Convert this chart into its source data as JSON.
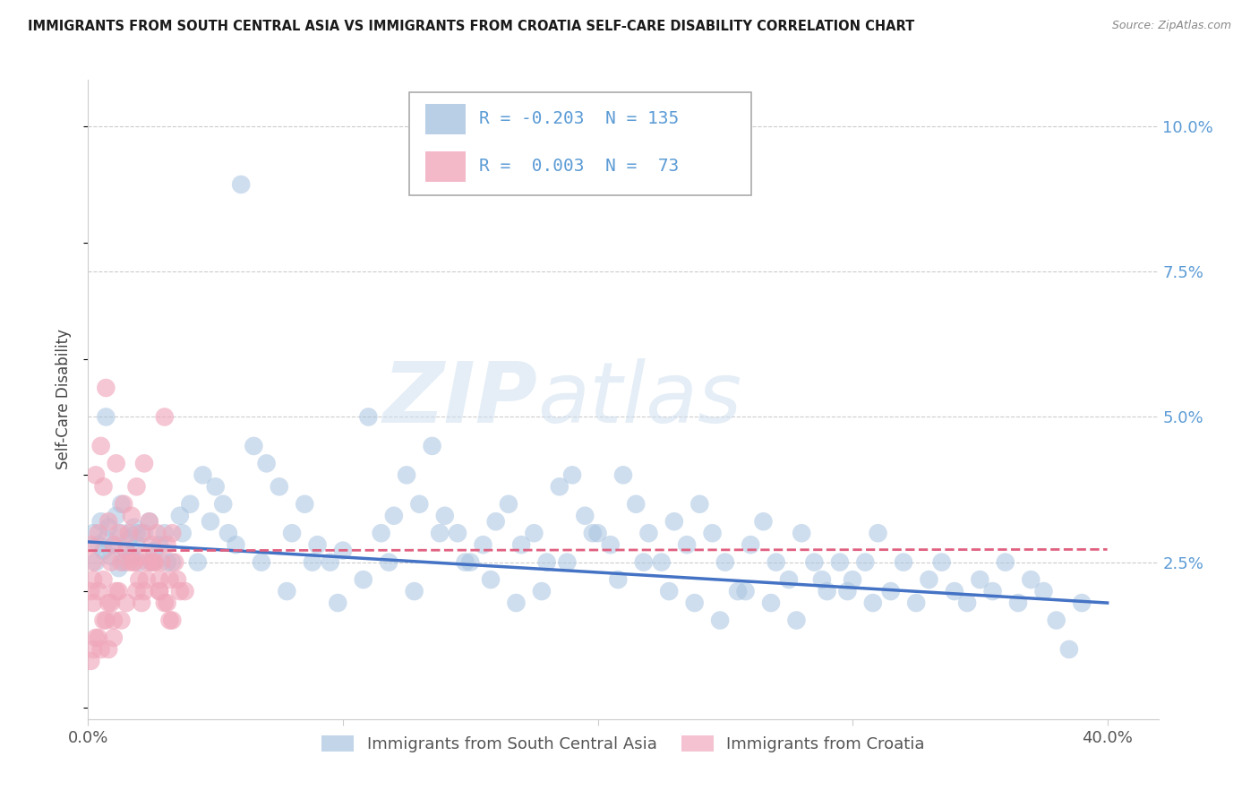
{
  "title": "IMMIGRANTS FROM SOUTH CENTRAL ASIA VS IMMIGRANTS FROM CROATIA SELF-CARE DISABILITY CORRELATION CHART",
  "source": "Source: ZipAtlas.com",
  "ylabel": "Self-Care Disability",
  "xlim": [
    0.0,
    0.42
  ],
  "ylim": [
    -0.002,
    0.108
  ],
  "legend_blue_r": "-0.203",
  "legend_blue_n": "135",
  "legend_pink_r": "0.003",
  "legend_pink_n": "73",
  "legend_label_blue": "Immigrants from South Central Asia",
  "legend_label_pink": "Immigrants from Croatia",
  "blue_color": "#a8c4e0",
  "pink_color": "#f0a8bc",
  "trendline_blue_color": "#4472c4",
  "trendline_pink_color": "#e06080",
  "blue_trendline": [
    0.0,
    0.0285,
    0.4,
    0.018
  ],
  "pink_trendline": [
    0.0,
    0.027,
    0.4,
    0.0272
  ],
  "ytick_gridlines": [
    0.025,
    0.05,
    0.075,
    0.1
  ],
  "xticks": [
    0.0,
    0.1,
    0.2,
    0.3,
    0.4
  ],
  "xticklabels": [
    "0.0%",
    "",
    "",
    "",
    "40.0%"
  ],
  "right_yticks": [
    0.025,
    0.05,
    0.075,
    0.1
  ],
  "right_yticklabels": [
    "2.5%",
    "5.0%",
    "7.5%",
    "10.0%"
  ],
  "blue_scatter_x": [
    0.002,
    0.003,
    0.004,
    0.005,
    0.006,
    0.007,
    0.008,
    0.009,
    0.01,
    0.011,
    0.012,
    0.013,
    0.014,
    0.015,
    0.016,
    0.017,
    0.018,
    0.019,
    0.02,
    0.022,
    0.024,
    0.026,
    0.028,
    0.03,
    0.033,
    0.036,
    0.04,
    0.045,
    0.05,
    0.055,
    0.06,
    0.065,
    0.07,
    0.075,
    0.08,
    0.085,
    0.09,
    0.095,
    0.1,
    0.11,
    0.115,
    0.12,
    0.125,
    0.13,
    0.135,
    0.14,
    0.145,
    0.15,
    0.155,
    0.16,
    0.165,
    0.17,
    0.175,
    0.18,
    0.185,
    0.19,
    0.195,
    0.2,
    0.205,
    0.21,
    0.215,
    0.22,
    0.225,
    0.23,
    0.235,
    0.24,
    0.245,
    0.25,
    0.255,
    0.26,
    0.265,
    0.27,
    0.275,
    0.28,
    0.285,
    0.29,
    0.295,
    0.3,
    0.305,
    0.31,
    0.315,
    0.32,
    0.325,
    0.33,
    0.335,
    0.34,
    0.345,
    0.35,
    0.355,
    0.36,
    0.365,
    0.37,
    0.375,
    0.38,
    0.385,
    0.39,
    0.007,
    0.013,
    0.019,
    0.025,
    0.031,
    0.037,
    0.043,
    0.048,
    0.053,
    0.058,
    0.068,
    0.078,
    0.088,
    0.098,
    0.108,
    0.118,
    0.128,
    0.138,
    0.148,
    0.158,
    0.168,
    0.178,
    0.188,
    0.198,
    0.208,
    0.218,
    0.228,
    0.238,
    0.248,
    0.258,
    0.268,
    0.278,
    0.288,
    0.298,
    0.308
  ],
  "blue_scatter_y": [
    0.03,
    0.025,
    0.028,
    0.032,
    0.027,
    0.029,
    0.031,
    0.026,
    0.028,
    0.033,
    0.024,
    0.03,
    0.025,
    0.027,
    0.029,
    0.026,
    0.031,
    0.028,
    0.025,
    0.03,
    0.032,
    0.027,
    0.028,
    0.03,
    0.025,
    0.033,
    0.035,
    0.04,
    0.038,
    0.03,
    0.09,
    0.045,
    0.042,
    0.038,
    0.03,
    0.035,
    0.028,
    0.025,
    0.027,
    0.05,
    0.03,
    0.033,
    0.04,
    0.035,
    0.045,
    0.033,
    0.03,
    0.025,
    0.028,
    0.032,
    0.035,
    0.028,
    0.03,
    0.025,
    0.038,
    0.04,
    0.033,
    0.03,
    0.028,
    0.04,
    0.035,
    0.03,
    0.025,
    0.032,
    0.028,
    0.035,
    0.03,
    0.025,
    0.02,
    0.028,
    0.032,
    0.025,
    0.022,
    0.03,
    0.025,
    0.02,
    0.025,
    0.022,
    0.025,
    0.03,
    0.02,
    0.025,
    0.018,
    0.022,
    0.025,
    0.02,
    0.018,
    0.022,
    0.02,
    0.025,
    0.018,
    0.022,
    0.02,
    0.015,
    0.01,
    0.018,
    0.05,
    0.035,
    0.03,
    0.025,
    0.025,
    0.03,
    0.025,
    0.032,
    0.035,
    0.028,
    0.025,
    0.02,
    0.025,
    0.018,
    0.022,
    0.025,
    0.02,
    0.03,
    0.025,
    0.022,
    0.018,
    0.02,
    0.025,
    0.03,
    0.022,
    0.025,
    0.02,
    0.018,
    0.015,
    0.02,
    0.018,
    0.015,
    0.022,
    0.02,
    0.018
  ],
  "pink_scatter_x": [
    0.001,
    0.002,
    0.003,
    0.004,
    0.005,
    0.006,
    0.007,
    0.008,
    0.009,
    0.01,
    0.011,
    0.012,
    0.013,
    0.014,
    0.015,
    0.016,
    0.017,
    0.018,
    0.019,
    0.02,
    0.021,
    0.022,
    0.023,
    0.024,
    0.025,
    0.026,
    0.027,
    0.028,
    0.029,
    0.03,
    0.031,
    0.032,
    0.033,
    0.034,
    0.002,
    0.004,
    0.006,
    0.008,
    0.01,
    0.012,
    0.015,
    0.018,
    0.02,
    0.022,
    0.025,
    0.028,
    0.03,
    0.032,
    0.035,
    0.038,
    0.001,
    0.002,
    0.003,
    0.005,
    0.007,
    0.009,
    0.011,
    0.013,
    0.016,
    0.019,
    0.021,
    0.023,
    0.026,
    0.028,
    0.031,
    0.033,
    0.036,
    0.001,
    0.002,
    0.004,
    0.006,
    0.008,
    0.01
  ],
  "pink_scatter_y": [
    0.028,
    0.022,
    0.04,
    0.03,
    0.045,
    0.038,
    0.055,
    0.032,
    0.025,
    0.028,
    0.042,
    0.03,
    0.025,
    0.035,
    0.027,
    0.03,
    0.033,
    0.025,
    0.038,
    0.026,
    0.03,
    0.042,
    0.025,
    0.032,
    0.028,
    0.025,
    0.03,
    0.022,
    0.025,
    0.05,
    0.028,
    0.022,
    0.03,
    0.025,
    0.025,
    0.02,
    0.022,
    0.018,
    0.015,
    0.02,
    0.018,
    0.025,
    0.022,
    0.02,
    0.025,
    0.02,
    0.018,
    0.015,
    0.022,
    0.02,
    0.02,
    0.018,
    0.012,
    0.01,
    0.015,
    0.018,
    0.02,
    0.015,
    0.025,
    0.02,
    0.018,
    0.022,
    0.025,
    0.02,
    0.018,
    0.015,
    0.02,
    0.008,
    0.01,
    0.012,
    0.015,
    0.01,
    0.012
  ]
}
